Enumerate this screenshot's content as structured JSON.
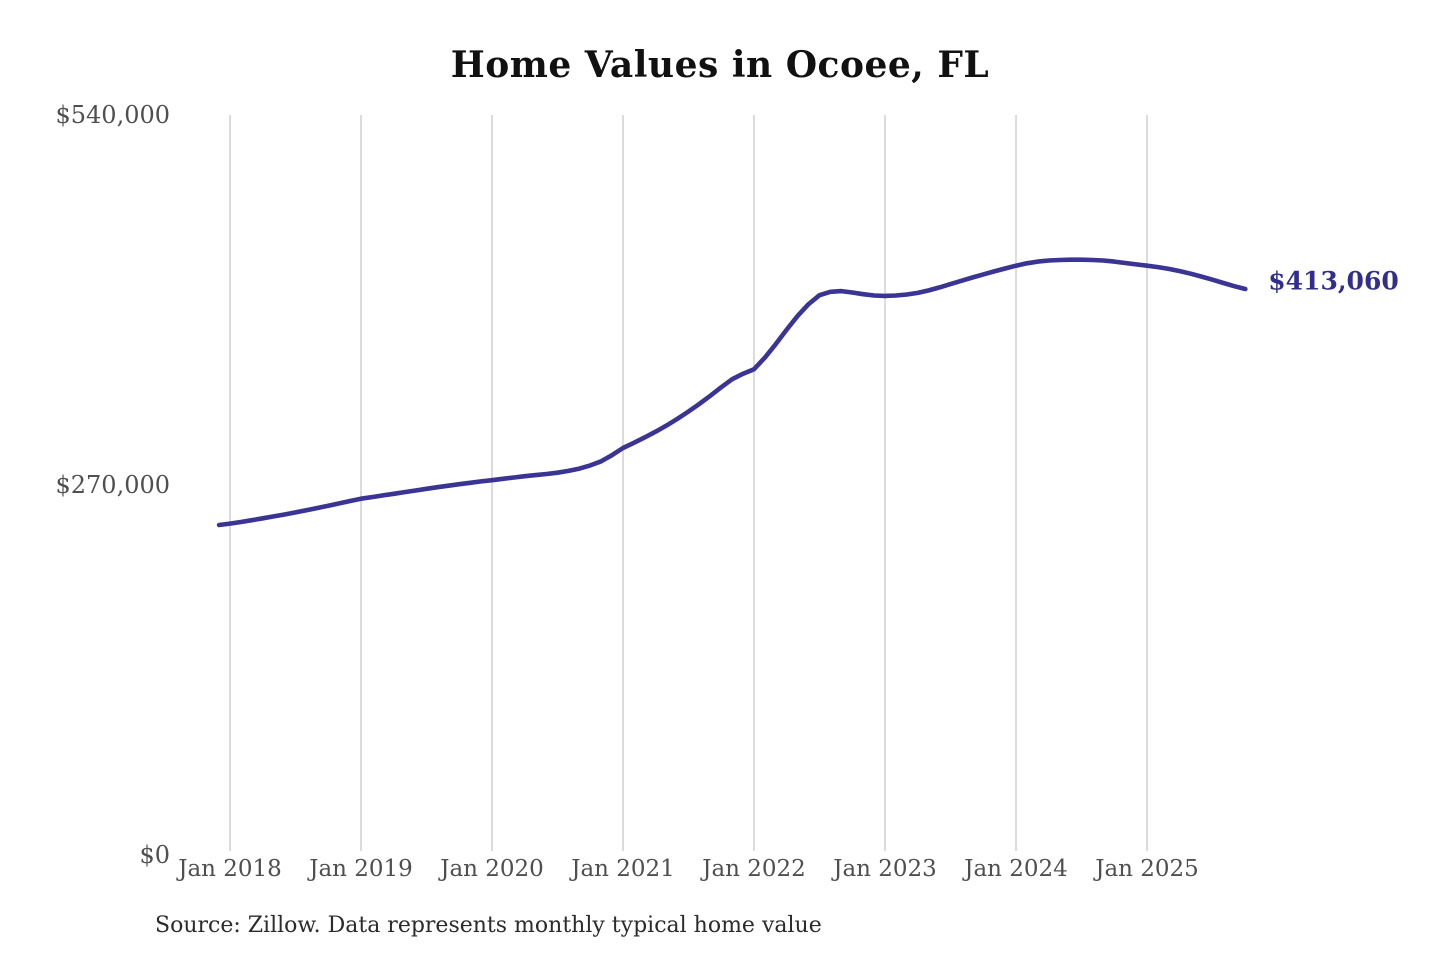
{
  "page": {
    "background_color": "#ffffff"
  },
  "chart_data": {
    "type": "line",
    "title": "Home Values in Ocoee, FL",
    "source_note": "Source: Zillow. Data represents monthly typical home value",
    "series_name": "Typical home value",
    "end_label": "$413,060",
    "end_value": 413060,
    "frequency": "monthly",
    "x_start": "Dec 2017",
    "x_end": "Oct 2025",
    "ylim": [
      0,
      540000
    ],
    "grid": "vertical-only",
    "legend": "none",
    "colors": {
      "line": "#3a3494",
      "end_label": "#322e8d",
      "gridline": "#c9c9c9",
      "tick_label": "#4f4f4f",
      "title": "#111111",
      "source": "#2b2b2b"
    },
    "y_ticks": [
      {
        "value": 0,
        "label": "$0"
      },
      {
        "value": 270000,
        "label": "$270,000"
      },
      {
        "value": 540000,
        "label": "$540,000"
      }
    ],
    "x_ticks": {
      "labels": [
        "Jan 2018",
        "Jan 2019",
        "Jan 2020",
        "Jan 2021",
        "Jan 2022",
        "Jan 2023",
        "Jan 2024",
        "Jan 2025"
      ],
      "month_index": [
        1,
        13,
        25,
        37,
        49,
        61,
        73,
        85
      ]
    },
    "values": [
      240800,
      241800,
      243000,
      244300,
      245700,
      247100,
      248500,
      250000,
      251600,
      253200,
      254900,
      256600,
      258300,
      260000,
      261200,
      262400,
      263600,
      264800,
      266000,
      267200,
      268400,
      269500,
      270600,
      271600,
      272600,
      273500,
      274500,
      275500,
      276400,
      277200,
      278000,
      279000,
      280300,
      282000,
      284300,
      287300,
      291800,
      297000,
      300800,
      304800,
      309000,
      313500,
      318400,
      323600,
      329200,
      335200,
      341400,
      347200,
      351200,
      354500,
      363000,
      373000,
      383500,
      393500,
      402000,
      408500,
      411000,
      411500,
      410500,
      409200,
      408300,
      408000,
      408300,
      409000,
      410200,
      412000,
      414200,
      416600,
      419000,
      421400,
      423700,
      425900,
      428000,
      430000,
      431800,
      433000,
      433800,
      434200,
      434400,
      434400,
      434200,
      433800,
      433000,
      432000,
      431000,
      430000,
      429000,
      427700,
      426100,
      424200,
      422100,
      419800,
      417400,
      415100,
      413060
    ]
  }
}
